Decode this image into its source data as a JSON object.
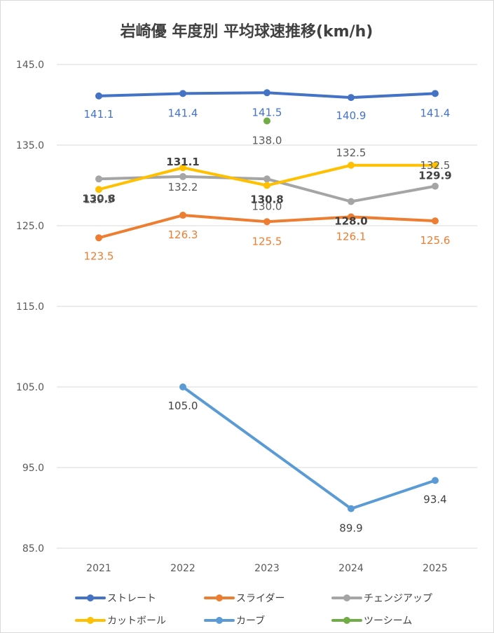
{
  "chart_data": {
    "type": "line",
    "title": "岩崎優 年度別 平均球速推移(km/h)",
    "xlabel": "",
    "ylabel": "",
    "categories": [
      "2021",
      "2022",
      "2023",
      "2024",
      "2025"
    ],
    "ylim": [
      85,
      149
    ],
    "yticks": [
      85.0,
      95.0,
      105.0,
      115.0,
      125.0,
      135.0,
      145.0
    ],
    "ytick_labels": [
      "85.0",
      "95.0",
      "105.0",
      "115.0",
      "125.0",
      "135.0",
      "145.0"
    ],
    "grid": true,
    "legend_position": "bottom",
    "series": [
      {
        "name": "ストレート",
        "color": "#4472c4",
        "values": [
          141.1,
          141.4,
          141.5,
          140.9,
          141.4
        ],
        "labels": [
          "141.1",
          "141.4",
          "141.5",
          "140.9",
          "141.4"
        ],
        "label_color": "#4472c4",
        "label_bold": false
      },
      {
        "name": "スライダー",
        "color": "#ed7d31",
        "values": [
          123.5,
          126.3,
          125.5,
          126.1,
          125.6
        ],
        "labels": [
          "123.5",
          "126.3",
          "125.5",
          "126.1",
          "125.6"
        ],
        "label_color": "#ed7d31",
        "label_bold": false
      },
      {
        "name": "チェンジアップ",
        "color": "#a5a5a5",
        "values": [
          130.8,
          131.1,
          130.8,
          128.0,
          129.9
        ],
        "labels": [
          "130.8",
          "131.1",
          "130.8",
          "128.0",
          "129.9"
        ],
        "label_color": "#404040",
        "label_bold": true
      },
      {
        "name": "カットボール",
        "color": "#ffc000",
        "values": [
          129.5,
          132.2,
          130.0,
          132.5,
          132.5
        ],
        "labels": [
          "129.5",
          "132.2",
          "130.0",
          "132.5",
          "132.5"
        ],
        "label_color": "#595959",
        "label_bold": false
      },
      {
        "name": "カーブ",
        "color": "#5b9bd5",
        "values": [
          null,
          105.0,
          null,
          89.9,
          93.4
        ],
        "labels": [
          null,
          "105.0",
          null,
          "89.9",
          "93.4"
        ],
        "label_color": "#404040",
        "label_bold": false
      },
      {
        "name": "ツーシーム",
        "color": "#70ad47",
        "values": [
          null,
          null,
          138.0,
          null,
          null
        ],
        "labels": [
          null,
          null,
          "138.0",
          null,
          null
        ],
        "label_color": "#595959",
        "label_bold": false
      }
    ]
  }
}
